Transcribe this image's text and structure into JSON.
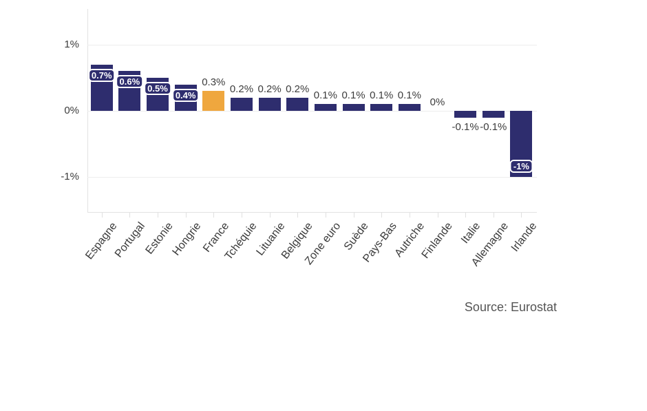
{
  "chart_data": {
    "type": "bar",
    "title": "",
    "categories": [
      "Espagne",
      "Portugal",
      "Estonie",
      "Hongrie",
      "France",
      "Tchéquie",
      "Lituanie",
      "Belgique",
      "Zone euro",
      "Suède",
      "Pays-Bas",
      "Autriche",
      "Finlande",
      "Italie",
      "Allemagne",
      "Irlande"
    ],
    "values": [
      0.7,
      0.6,
      0.5,
      0.4,
      0.3,
      0.2,
      0.2,
      0.2,
      0.1,
      0.1,
      0.1,
      0.1,
      0,
      -0.1,
      -0.1,
      -1
    ],
    "data_labels": [
      "0.7%",
      "0.6%",
      "0.5%",
      "0.4%",
      "0.3%",
      "0.2%",
      "0.2%",
      "0.2%",
      "0.1%",
      "0.1%",
      "0.1%",
      "0.1%",
      "0%",
      "-0.1%",
      "-0.1%",
      "-1%"
    ],
    "label_styles": [
      "pill",
      "pill",
      "pill",
      "pill",
      "above",
      "above",
      "above",
      "above",
      "above",
      "above",
      "above",
      "above",
      "above",
      "below",
      "below",
      "pill-bottom"
    ],
    "highlight_index": 4,
    "highlight_category": "France",
    "xlabel": "",
    "ylabel": "",
    "y_ticks": [
      {
        "label": "1%",
        "value": 1
      },
      {
        "label": "0%",
        "value": 0
      },
      {
        "label": "-1%",
        "value": -1
      }
    ],
    "ylim": [
      -1.53,
      1.52
    ],
    "grid": "horizontal",
    "legend": "none",
    "source": "Source: Eurostat",
    "colors": {
      "bar": "#2e2d6e",
      "highlight": "#efa73e",
      "value_label_text": "#3c3c3c",
      "pill_text": "#ffffff",
      "pill_border": "#ffffff",
      "axis_line": "#e2e2e2",
      "gridline": "#ededed",
      "tick_label_text": "#3c3c3c",
      "source_text": "#555555"
    }
  }
}
